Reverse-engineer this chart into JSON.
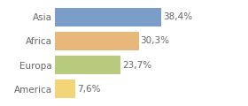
{
  "categories": [
    "America",
    "Europa",
    "Africa",
    "Asia"
  ],
  "values": [
    7.6,
    23.7,
    30.3,
    38.4
  ],
  "labels": [
    "7,6%",
    "23,7%",
    "30,3%",
    "38,4%"
  ],
  "bar_colors": [
    "#f2d479",
    "#b8ca7e",
    "#e8b87a",
    "#7a9ec8"
  ],
  "background_color": "#ffffff",
  "xlim": [
    0,
    50
  ],
  "bar_height": 0.78,
  "label_fontsize": 7.5,
  "tick_fontsize": 7.5,
  "label_color": "#666666",
  "tick_color": "#666666"
}
